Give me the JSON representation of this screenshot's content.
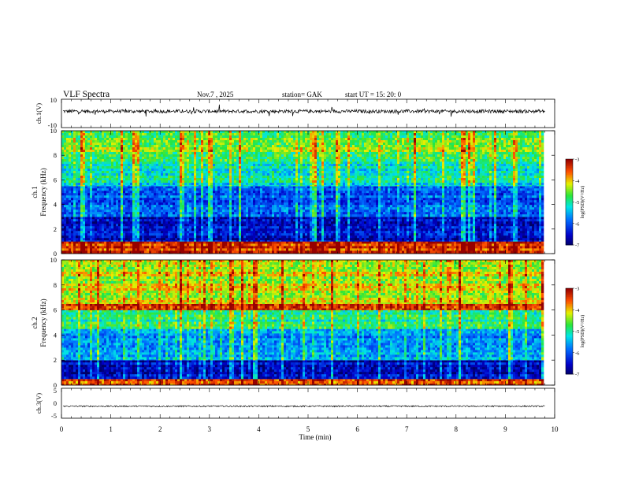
{
  "header": {
    "title": "VLF  Spectra",
    "date": "Nov.7  , 2025",
    "station": "station= GAK",
    "start": "start  UT  =    15: 20: 0"
  },
  "chart_data": [
    {
      "type": "line",
      "name": "ch1-waveform",
      "ylabel": "ch.1(V)",
      "ylim": [
        -10,
        10
      ],
      "y_ticks": [
        "10",
        "-10"
      ],
      "x_range_min": [
        0,
        9.8
      ],
      "baseline_v": 1.5,
      "noise_v": 1.2,
      "spike_v": 4
    },
    {
      "type": "heatmap",
      "name": "ch1-spectrogram",
      "ylabel": "ch.1\nFrequency  (kHz)",
      "ylim": [
        0,
        10
      ],
      "y_ticks": [
        "0",
        "2",
        "4",
        "6",
        "8",
        "10"
      ],
      "colorbar": {
        "label": "log(PSD)(V²/Hz)",
        "range": [
          -7,
          -3
        ],
        "ticks": [
          "-3",
          "-4",
          "-5",
          "-6",
          "-7"
        ]
      },
      "bands_khz": [
        {
          "from": 0,
          "to": 1.0,
          "level": -3.4
        },
        {
          "from": 1.0,
          "to": 3.0,
          "level": -6.6
        },
        {
          "from": 3.0,
          "to": 5.5,
          "level": -6.1
        },
        {
          "from": 5.5,
          "to": 7.5,
          "level": -5.2
        },
        {
          "from": 7.5,
          "to": 10.0,
          "level": -4.6
        }
      ]
    },
    {
      "type": "heatmap",
      "name": "ch2-spectrogram",
      "ylabel": "ch.2\nFrequency  (kHz)",
      "ylim": [
        0,
        10
      ],
      "y_ticks": [
        "0",
        "2",
        "4",
        "6",
        "8",
        "10"
      ],
      "colorbar": {
        "label": "log(PSD)(V²/Hz)",
        "range": [
          -7,
          -3
        ],
        "ticks": [
          "-3",
          "-4",
          "-5",
          "-6",
          "-7"
        ]
      },
      "bands_khz": [
        {
          "from": 0,
          "to": 0.5,
          "level": -3.5
        },
        {
          "from": 0.5,
          "to": 2.0,
          "level": -6.6
        },
        {
          "from": 2.0,
          "to": 4.5,
          "level": -5.6
        },
        {
          "from": 4.5,
          "to": 6.0,
          "level": -5.0
        },
        {
          "from": 6.0,
          "to": 6.5,
          "level": -3.6
        },
        {
          "from": 6.5,
          "to": 10.0,
          "level": -4.3
        }
      ]
    },
    {
      "type": "line",
      "name": "ch3-waveform",
      "ylabel": "ch.3(V)",
      "ylim": [
        -5,
        5
      ],
      "y_ticks": [
        "5",
        "0",
        "-5"
      ],
      "baseline_v": -1.0,
      "noise_v": 0.25
    }
  ],
  "x_axis": {
    "label": "Time  (min)",
    "range": [
      0,
      10
    ],
    "ticks": [
      "0",
      "1",
      "2",
      "3",
      "4",
      "5",
      "6",
      "7",
      "8",
      "9",
      "10"
    ],
    "data_end_min": 9.8
  }
}
